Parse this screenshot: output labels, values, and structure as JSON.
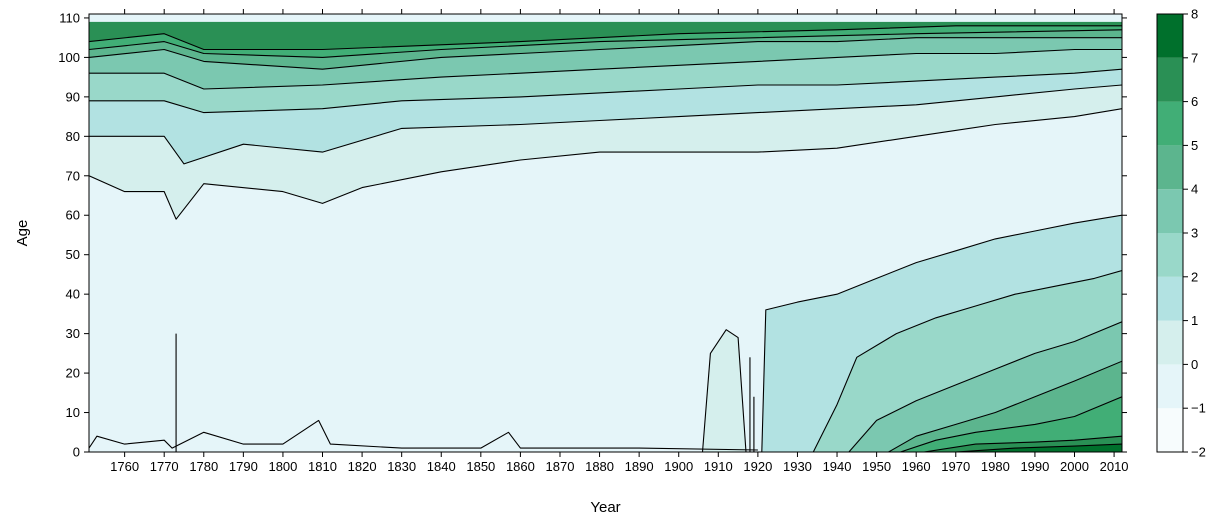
{
  "chart_data": {
    "type": "heatmap",
    "title": "",
    "xlabel": "Year",
    "ylabel": "Age",
    "xlim": [
      1751,
      2012
    ],
    "ylim": [
      0,
      111
    ],
    "x_ticks": [
      1760,
      1770,
      1780,
      1790,
      1800,
      1810,
      1820,
      1830,
      1840,
      1850,
      1860,
      1870,
      1880,
      1890,
      1900,
      1910,
      1920,
      1930,
      1940,
      1950,
      1960,
      1970,
      1980,
      1990,
      2000,
      2010
    ],
    "y_ticks": [
      0,
      10,
      20,
      30,
      40,
      50,
      60,
      70,
      80,
      90,
      100,
      110
    ],
    "grid": false,
    "legend": "right",
    "colorbar": {
      "breaks": [
        -2,
        -1,
        0,
        1,
        2,
        3,
        4,
        5,
        6,
        7,
        8
      ],
      "colors": [
        "#f7fcfd",
        "#e5f5f9",
        "#d5efed",
        "#b2e2e2",
        "#99d8c9",
        "#7bc8b0",
        "#5cb58e",
        "#41ae76",
        "#2a9055",
        "#00702c",
        "#00441b"
      ]
    },
    "level_boundaries": [
      {
        "level": 0,
        "points": [
          [
            1751,
            70
          ],
          [
            1760,
            66
          ],
          [
            1770,
            66
          ],
          [
            1773,
            59
          ],
          [
            1780,
            68
          ],
          [
            1800,
            66
          ],
          [
            1810,
            63
          ],
          [
            1820,
            67
          ],
          [
            1840,
            71
          ],
          [
            1860,
            74
          ],
          [
            1880,
            76
          ],
          [
            1900,
            76
          ],
          [
            1920,
            76
          ],
          [
            1940,
            77
          ],
          [
            1960,
            80
          ],
          [
            1980,
            83
          ],
          [
            2000,
            85
          ],
          [
            2012,
            87
          ]
        ]
      },
      {
        "level": 1,
        "points": [
          [
            1751,
            80
          ],
          [
            1770,
            80
          ],
          [
            1775,
            73
          ],
          [
            1790,
            78
          ],
          [
            1810,
            76
          ],
          [
            1830,
            82
          ],
          [
            1860,
            83
          ],
          [
            1880,
            84
          ],
          [
            1900,
            85
          ],
          [
            1920,
            86
          ],
          [
            1940,
            87
          ],
          [
            1960,
            88
          ],
          [
            1980,
            90
          ],
          [
            2000,
            92
          ],
          [
            2012,
            93
          ]
        ]
      },
      {
        "level": 2,
        "points": [
          [
            1751,
            89
          ],
          [
            1770,
            89
          ],
          [
            1780,
            86
          ],
          [
            1810,
            87
          ],
          [
            1830,
            89
          ],
          [
            1860,
            90
          ],
          [
            1880,
            91
          ],
          [
            1900,
            92
          ],
          [
            1920,
            93
          ],
          [
            1940,
            93
          ],
          [
            1960,
            94
          ],
          [
            1980,
            95
          ],
          [
            2000,
            96
          ],
          [
            2012,
            97
          ]
        ]
      },
      {
        "level": 3,
        "points": [
          [
            1751,
            96
          ],
          [
            1770,
            96
          ],
          [
            1780,
            92
          ],
          [
            1810,
            93
          ],
          [
            1840,
            95
          ],
          [
            1860,
            96
          ],
          [
            1880,
            97
          ],
          [
            1900,
            98
          ],
          [
            1920,
            99
          ],
          [
            1940,
            100
          ],
          [
            1960,
            101
          ],
          [
            1980,
            101
          ],
          [
            2000,
            102
          ],
          [
            2012,
            102
          ]
        ]
      },
      {
        "level": 4,
        "points": [
          [
            1751,
            100
          ],
          [
            1770,
            102
          ],
          [
            1780,
            99
          ],
          [
            1810,
            97
          ],
          [
            1840,
            100
          ],
          [
            1860,
            101
          ],
          [
            1880,
            102
          ],
          [
            1900,
            103
          ],
          [
            1920,
            104
          ],
          [
            1940,
            104
          ],
          [
            1960,
            105
          ],
          [
            1980,
            105
          ],
          [
            2012,
            105
          ]
        ]
      },
      {
        "level": 5,
        "points": [
          [
            1751,
            102
          ],
          [
            1770,
            104
          ],
          [
            1780,
            101
          ],
          [
            1810,
            100
          ],
          [
            1840,
            102
          ],
          [
            1880,
            104
          ],
          [
            1920,
            105
          ],
          [
            1960,
            106
          ],
          [
            2012,
            107
          ]
        ]
      },
      {
        "level": 6,
        "points": [
          [
            1751,
            104
          ],
          [
            1770,
            106
          ],
          [
            1780,
            102
          ],
          [
            1810,
            102
          ],
          [
            1860,
            104
          ],
          [
            1900,
            106
          ],
          [
            1940,
            107
          ],
          [
            1970,
            108
          ],
          [
            2012,
            108
          ]
        ]
      }
    ],
    "young_contours": [
      {
        "level": 1,
        "points": [
          [
            1921,
            0
          ],
          [
            1922,
            36
          ],
          [
            1930,
            38
          ],
          [
            1940,
            40
          ],
          [
            1950,
            44
          ],
          [
            1960,
            48
          ],
          [
            1970,
            51
          ],
          [
            1980,
            54
          ],
          [
            1990,
            56
          ],
          [
            2000,
            58
          ],
          [
            2012,
            60
          ]
        ]
      },
      {
        "level": 2,
        "points": [
          [
            1934,
            0
          ],
          [
            1940,
            12
          ],
          [
            1945,
            24
          ],
          [
            1955,
            30
          ],
          [
            1965,
            34
          ],
          [
            1975,
            37
          ],
          [
            1985,
            40
          ],
          [
            1995,
            42
          ],
          [
            2005,
            44
          ],
          [
            2012,
            46
          ]
        ]
      },
      {
        "level": 3,
        "points": [
          [
            1943,
            0
          ],
          [
            1950,
            8
          ],
          [
            1960,
            13
          ],
          [
            1970,
            17
          ],
          [
            1980,
            21
          ],
          [
            1990,
            25
          ],
          [
            2000,
            28
          ],
          [
            2012,
            33
          ]
        ]
      },
      {
        "level": 4,
        "points": [
          [
            1953,
            0
          ],
          [
            1960,
            4
          ],
          [
            1970,
            7
          ],
          [
            1980,
            10
          ],
          [
            1990,
            14
          ],
          [
            2000,
            18
          ],
          [
            2012,
            23
          ]
        ]
      },
      {
        "level": 5,
        "points": [
          [
            1956,
            0
          ],
          [
            1965,
            3
          ],
          [
            1975,
            5
          ],
          [
            1990,
            7
          ],
          [
            2000,
            9
          ],
          [
            2012,
            14
          ]
        ]
      },
      {
        "level": 6,
        "points": [
          [
            1962,
            0
          ],
          [
            1975,
            2
          ],
          [
            1990,
            2.5
          ],
          [
            2000,
            3
          ],
          [
            2012,
            4
          ]
        ]
      },
      {
        "level": 7,
        "points": [
          [
            1970,
            0
          ],
          [
            1985,
            1
          ],
          [
            2000,
            1.5
          ],
          [
            2012,
            2
          ]
        ]
      }
    ],
    "infant_contour": [
      [
        1751,
        1
      ],
      [
        1753,
        4
      ],
      [
        1760,
        2
      ],
      [
        1770,
        3
      ],
      [
        1772,
        1
      ],
      [
        1780,
        5
      ],
      [
        1790,
        2
      ],
      [
        1800,
        2
      ],
      [
        1809,
        8
      ],
      [
        1812,
        2
      ],
      [
        1830,
        1
      ],
      [
        1850,
        1
      ],
      [
        1857,
        5
      ],
      [
        1860,
        1
      ],
      [
        1890,
        1
      ],
      [
        1920,
        0.5
      ]
    ],
    "cohort_spikes": [
      {
        "x": 1773,
        "top": 30
      },
      {
        "x": 1918,
        "top": 24
      },
      {
        "x": 1919,
        "top": 14
      }
    ],
    "pre_transition_region": [
      [
        1906,
        0
      ],
      [
        1908,
        25
      ],
      [
        1912,
        31
      ],
      [
        1915,
        29
      ],
      [
        1917,
        0
      ]
    ]
  }
}
